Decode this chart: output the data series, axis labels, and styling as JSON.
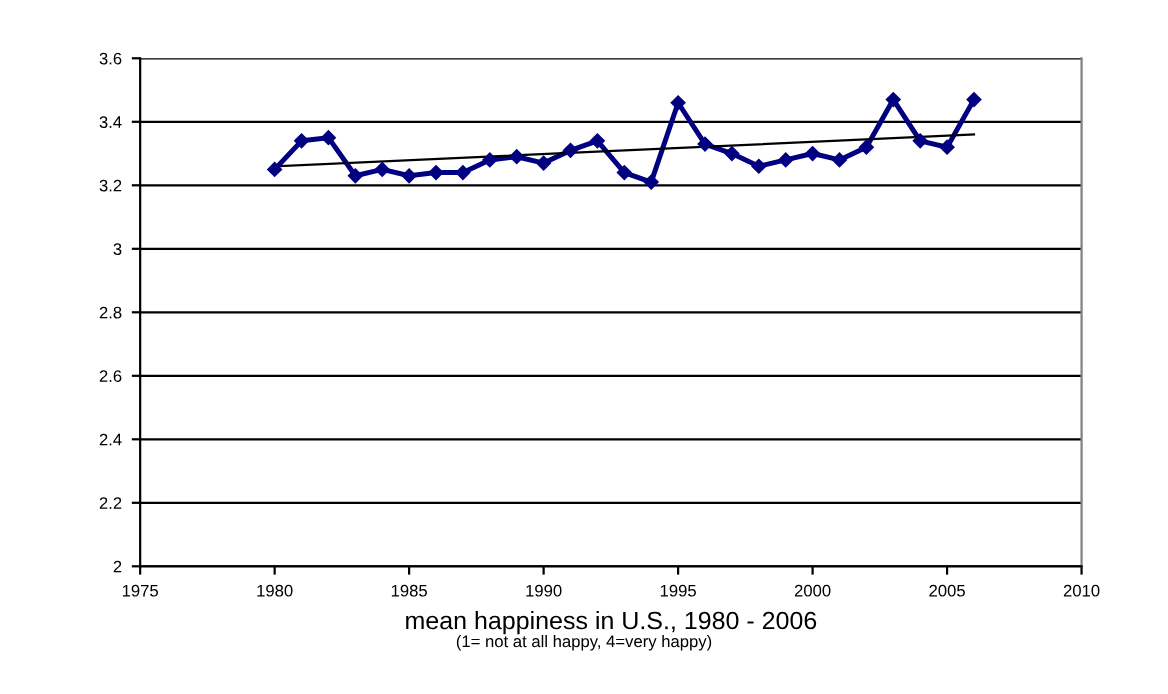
{
  "chart_data": {
    "type": "line",
    "xlabel": "mean happiness in U.S., 1980 - 2006",
    "annotations": [
      "(1= not at all happy, 4=very happy)"
    ],
    "x": [
      1980,
      1981,
      1982,
      1983,
      1984,
      1985,
      1986,
      1987,
      1988,
      1989,
      1990,
      1991,
      1992,
      1993,
      1994,
      1995,
      1996,
      1997,
      1998,
      1999,
      2000,
      2001,
      2002,
      2003,
      2004,
      2005,
      2006
    ],
    "series": [
      {
        "color": "#000080",
        "values": [
          3.25,
          3.34,
          3.35,
          3.23,
          3.25,
          3.23,
          3.24,
          3.24,
          3.28,
          3.29,
          3.27,
          3.31,
          3.34,
          3.24,
          3.21,
          3.46,
          3.33,
          3.3,
          3.26,
          3.28,
          3.3,
          3.28,
          3.32,
          3.47,
          3.34,
          3.32,
          3.47
        ],
        "marker": "diamond"
      },
      {
        "type": "line",
        "color": "#000000",
        "x": [
          1980,
          2006
        ],
        "values": [
          3.26,
          3.36
        ],
        "marker": "none"
      }
    ],
    "xlim": [
      1975,
      2010
    ],
    "xticks": [
      1975,
      1980,
      1985,
      1990,
      1995,
      2000,
      2005,
      2010
    ],
    "ylim": [
      2,
      3.6
    ],
    "yticks": [
      2,
      2.2,
      2.4,
      2.6,
      2.8,
      3,
      3.2,
      3.4,
      3.6
    ],
    "grid": "y",
    "legend": false
  }
}
